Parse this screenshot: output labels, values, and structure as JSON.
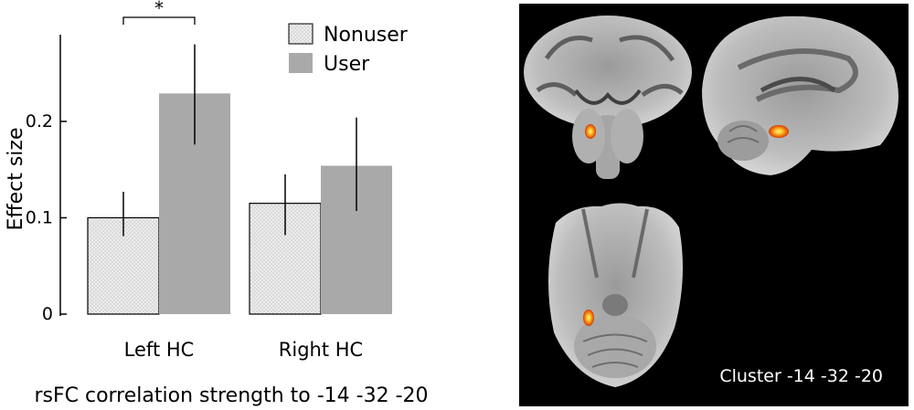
{
  "chart_data": {
    "type": "bar",
    "categories": [
      "Left HC",
      "Right HC"
    ],
    "series": [
      {
        "name": "Nonuser",
        "values": [
          0.1,
          0.115
        ],
        "error_low": [
          0.081,
          0.082
        ],
        "error_high": [
          0.127,
          0.145
        ]
      },
      {
        "name": "User",
        "values": [
          0.229,
          0.154
        ],
        "error_low": [
          0.176,
          0.107
        ],
        "error_high": [
          0.28,
          0.204
        ]
      }
    ],
    "title": "",
    "xlabel": "rsFC correlation strength to -14 -32 -20",
    "ylabel": "Effect size",
    "ylim": [
      0,
      0.29
    ],
    "yticks": [
      "0",
      "0.1",
      "0.2"
    ],
    "yticks_values": [
      0,
      0.1,
      0.2
    ],
    "legend": {
      "position": "top-right",
      "entries": [
        "Nonuser",
        "User"
      ]
    },
    "significance": {
      "label": "*",
      "category": "Left HC"
    },
    "colors": {
      "nonuser_fill": "#ececec",
      "user_fill": "#a9a9a9",
      "axis": "#000000"
    }
  },
  "brain_panel": {
    "label": "Cluster -14 -32 -20",
    "colors": {
      "background": "#000000",
      "cluster": "#ff9a1a",
      "tissue": "#b5b5b5"
    }
  }
}
